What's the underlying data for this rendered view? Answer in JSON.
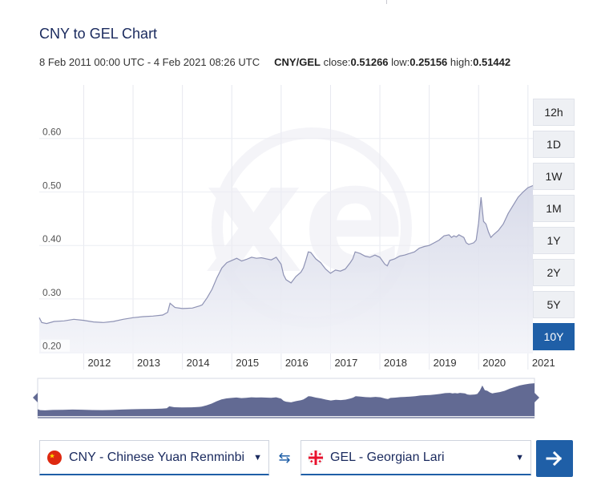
{
  "header": {
    "title": "CNY to GEL Chart",
    "date_range": "8 Feb 2011 00:00 UTC - 4 Feb 2021 08:26 UTC",
    "pair": "CNY/GEL",
    "close_label": "close:",
    "close_value": "0.51266",
    "low_label": "low:",
    "low_value": "0.25156",
    "high_label": "high:",
    "high_value": "0.51442"
  },
  "ranges": [
    {
      "label": "12h",
      "active": false
    },
    {
      "label": "1D",
      "active": false
    },
    {
      "label": "1W",
      "active": false
    },
    {
      "label": "1M",
      "active": false
    },
    {
      "label": "1Y",
      "active": false
    },
    {
      "label": "2Y",
      "active": false
    },
    {
      "label": "5Y",
      "active": false
    },
    {
      "label": "10Y",
      "active": true
    }
  ],
  "selectors": {
    "from_label": "CNY - Chinese Yuan Renminbi",
    "to_label": "GEL - Georgian Lari"
  },
  "colors": {
    "accent": "#1f5fa7",
    "line": "#8e92b4",
    "area": "#e2e4ef",
    "navigator": "#626a93"
  },
  "icons": {
    "swap": "swap-arrows-icon",
    "go": "arrow-right-icon",
    "watermark": "xe-logo"
  },
  "chart_data": {
    "type": "area",
    "title": "CNY to GEL Chart",
    "series": [
      {
        "name": "CNY/GEL",
        "x": [
          2011.1,
          2011.15,
          2011.25,
          2011.4,
          2011.6,
          2011.8,
          2012.0,
          2012.2,
          2012.4,
          2012.6,
          2012.8,
          2013.0,
          2013.2,
          2013.4,
          2013.6,
          2013.7,
          2013.75,
          2013.85,
          2014.0,
          2014.2,
          2014.35,
          2014.4,
          2014.5,
          2014.6,
          2014.7,
          2014.8,
          2014.9,
          2015.0,
          2015.1,
          2015.2,
          2015.3,
          2015.4,
          2015.5,
          2015.6,
          2015.7,
          2015.8,
          2015.9,
          2016.0,
          2016.05,
          2016.1,
          2016.2,
          2016.3,
          2016.4,
          2016.45,
          2016.5,
          2016.55,
          2016.6,
          2016.7,
          2016.8,
          2016.9,
          2017.0,
          2017.1,
          2017.2,
          2017.3,
          2017.4,
          2017.45,
          2017.5,
          2017.6,
          2017.7,
          2017.8,
          2017.9,
          2018.0,
          2018.1,
          2018.15,
          2018.2,
          2018.3,
          2018.4,
          2018.5,
          2018.6,
          2018.7,
          2018.8,
          2018.9,
          2019.0,
          2019.1,
          2019.2,
          2019.3,
          2019.4,
          2019.45,
          2019.5,
          2019.55,
          2019.6,
          2019.7,
          2019.75,
          2019.8,
          2019.9,
          2019.95,
          2020.0,
          2020.05,
          2020.1,
          2020.15,
          2020.2,
          2020.25,
          2020.3,
          2020.4,
          2020.5,
          2020.6,
          2020.7,
          2020.8,
          2020.9,
          2021.0,
          2021.1
        ],
        "values": [
          0.265,
          0.256,
          0.254,
          0.258,
          0.259,
          0.262,
          0.26,
          0.257,
          0.256,
          0.258,
          0.262,
          0.265,
          0.267,
          0.268,
          0.27,
          0.275,
          0.292,
          0.284,
          0.282,
          0.283,
          0.287,
          0.289,
          0.302,
          0.318,
          0.34,
          0.358,
          0.368,
          0.372,
          0.376,
          0.371,
          0.374,
          0.378,
          0.376,
          0.377,
          0.375,
          0.373,
          0.378,
          0.365,
          0.345,
          0.336,
          0.33,
          0.342,
          0.35,
          0.358,
          0.372,
          0.388,
          0.387,
          0.375,
          0.368,
          0.356,
          0.348,
          0.354,
          0.352,
          0.356,
          0.368,
          0.375,
          0.388,
          0.385,
          0.38,
          0.378,
          0.382,
          0.378,
          0.365,
          0.362,
          0.372,
          0.375,
          0.38,
          0.382,
          0.385,
          0.388,
          0.395,
          0.398,
          0.4,
          0.405,
          0.41,
          0.418,
          0.42,
          0.415,
          0.418,
          0.416,
          0.42,
          0.415,
          0.405,
          0.402,
          0.405,
          0.41,
          0.442,
          0.49,
          0.445,
          0.44,
          0.425,
          0.415,
          0.42,
          0.428,
          0.44,
          0.46,
          0.475,
          0.49,
          0.5,
          0.508,
          0.512
        ]
      }
    ],
    "xlabel": "",
    "ylabel": "",
    "xlim": [
      2011.1,
      2021.1
    ],
    "ylim": [
      0.198,
      0.7
    ],
    "ytick_values": [
      0.2,
      0.3,
      0.4,
      0.5,
      0.6
    ],
    "ytick_labels": [
      "0.20",
      "0.30",
      "0.40",
      "0.50",
      "0.60"
    ],
    "xtick_values": [
      2012,
      2013,
      2014,
      2015,
      2016,
      2017,
      2018,
      2019,
      2020,
      2021
    ],
    "xtick_labels": [
      "2012",
      "2013",
      "2014",
      "2015",
      "2016",
      "2017",
      "2018",
      "2019",
      "2020",
      "2021"
    ],
    "grid": true,
    "legend": "none"
  }
}
